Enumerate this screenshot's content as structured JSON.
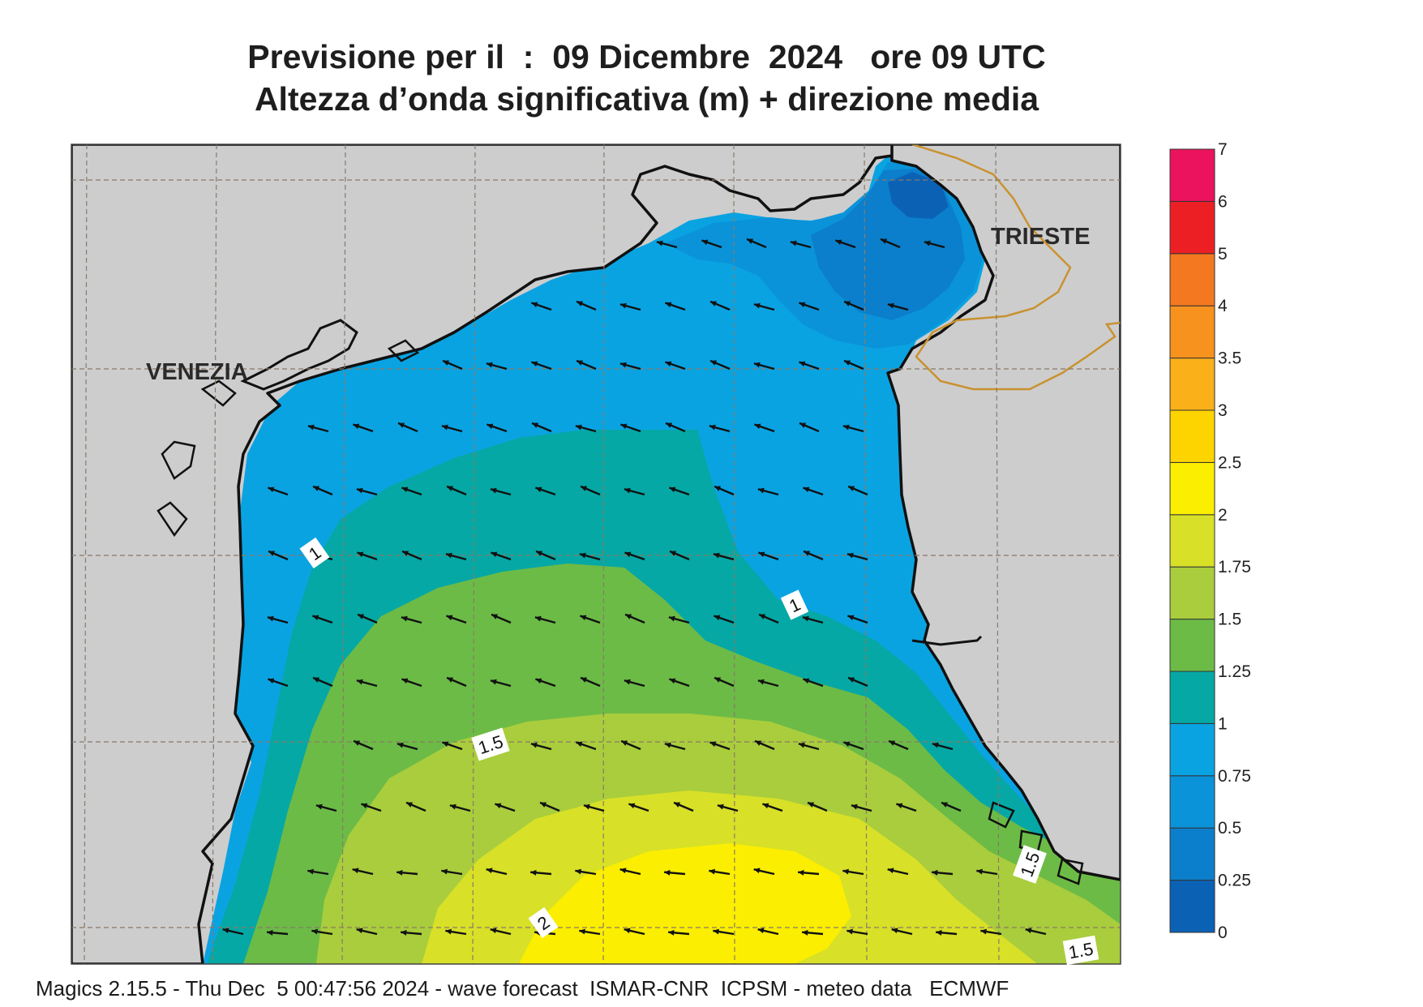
{
  "title": {
    "line1": "Previsione per il  :  09 Dicembre  2024   ore 09 UTC",
    "line2": "Altezza d’onda significativa (m) + direzione media"
  },
  "cities": [
    {
      "name": "VENEZIA",
      "id": "venezia"
    },
    {
      "name": "TRIESTE",
      "id": "trieste"
    }
  ],
  "contour_labels": [
    "1",
    "1",
    "1.5",
    "1.5",
    "2",
    "1.5"
  ],
  "legend": {
    "ticks": [
      "0",
      "0.25",
      "0.5",
      "0.75",
      "1",
      "1.25",
      "1.5",
      "1.75",
      "2",
      "2.5",
      "3",
      "3.5",
      "4",
      "5",
      "6",
      "7"
    ],
    "colors": [
      "#0b62b5",
      "#0b7fcb",
      "#0a93d9",
      "#0aa3e2",
      "#05a8a5",
      "#6cbb47",
      "#a9cd3c",
      "#d8e028",
      "#fbee00",
      "#fdd400",
      "#f9b019",
      "#f7921e",
      "#f47820",
      "#ec2024",
      "#ec135e"
    ]
  },
  "wave_direction": "arrows pointing mostly west / west-south-west",
  "footer": "Magics 2.15.5 - Thu Dec  5 00:47:56 2024 - wave forecast  ISMAR-CNR  ICPSM - meteo data   ECMWF"
}
